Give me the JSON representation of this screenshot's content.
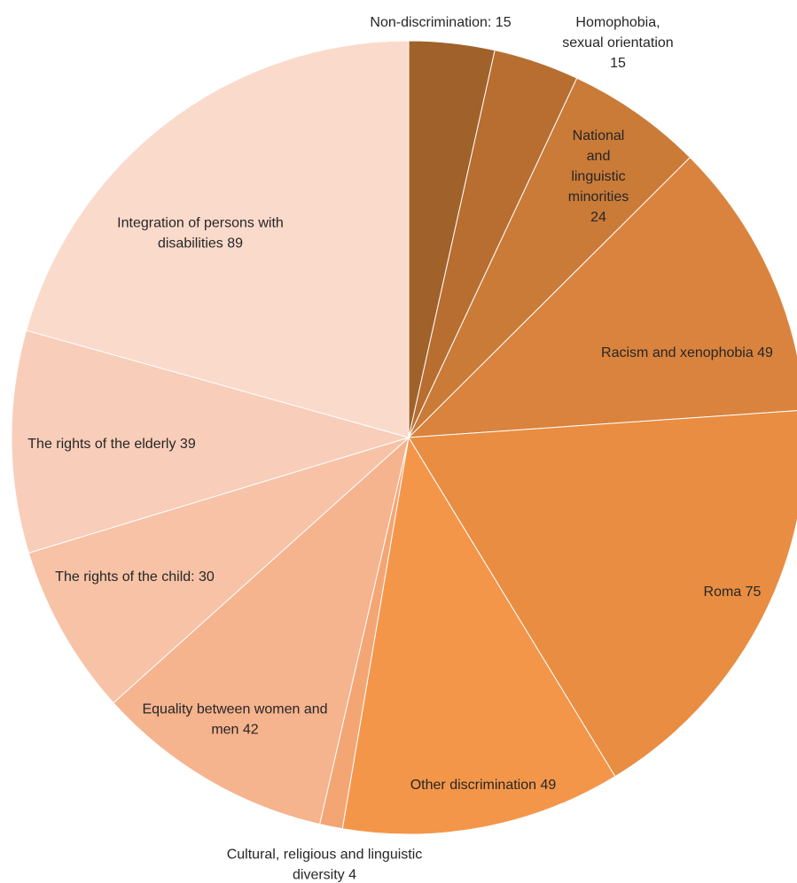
{
  "chart_data": {
    "type": "pie",
    "title": "",
    "slices": [
      {
        "label": "Non-discrimination: 15",
        "value": 15,
        "color": "#A0622A"
      },
      {
        "label": "Homophobia, sexual orientation 15",
        "value": 15,
        "color": "#B86E31"
      },
      {
        "label": "National and linguistic minorities 24",
        "value": 24,
        "color": "#CA7B38"
      },
      {
        "label": "Racism and xenophobia 49",
        "value": 49,
        "color": "#DA833E"
      },
      {
        "label": "Roma 75",
        "value": 75,
        "color": "#E88D42"
      },
      {
        "label": "Other discrimination 49",
        "value": 49,
        "color": "#F4964A"
      },
      {
        "label": "Cultural, religious and linguistic diversity 4",
        "value": 4,
        "color": "#F4A574"
      },
      {
        "label": "Equality between women and men 42",
        "value": 42,
        "color": "#F5B38E"
      },
      {
        "label": "The rights of the child: 30",
        "value": 30,
        "color": "#F7C2A6"
      },
      {
        "label": "The rights of the elderly 39",
        "value": 39,
        "color": "#F8CDB9"
      },
      {
        "label": "Integration of persons with disabilities 89",
        "value": 89,
        "color": "#FADACB"
      }
    ],
    "label_lines": [
      [
        "Non-discrimination: 15"
      ],
      [
        "Homophobia,",
        "sexual orientation",
        "15"
      ],
      [
        "National",
        "and",
        "linguistic",
        "minorities",
        "24"
      ],
      [
        "Racism and xenophobia 49"
      ],
      [
        "Roma 75"
      ],
      [
        "Other discrimination 49"
      ],
      [
        "Cultural, religious and linguistic",
        "diversity 4"
      ],
      [
        "Equality between women and",
        "men 42"
      ],
      [
        "The rights of the child: 30"
      ],
      [
        "The rights of the elderly 39"
      ],
      [
        "Integration of persons with",
        "disabilities 89"
      ]
    ]
  }
}
